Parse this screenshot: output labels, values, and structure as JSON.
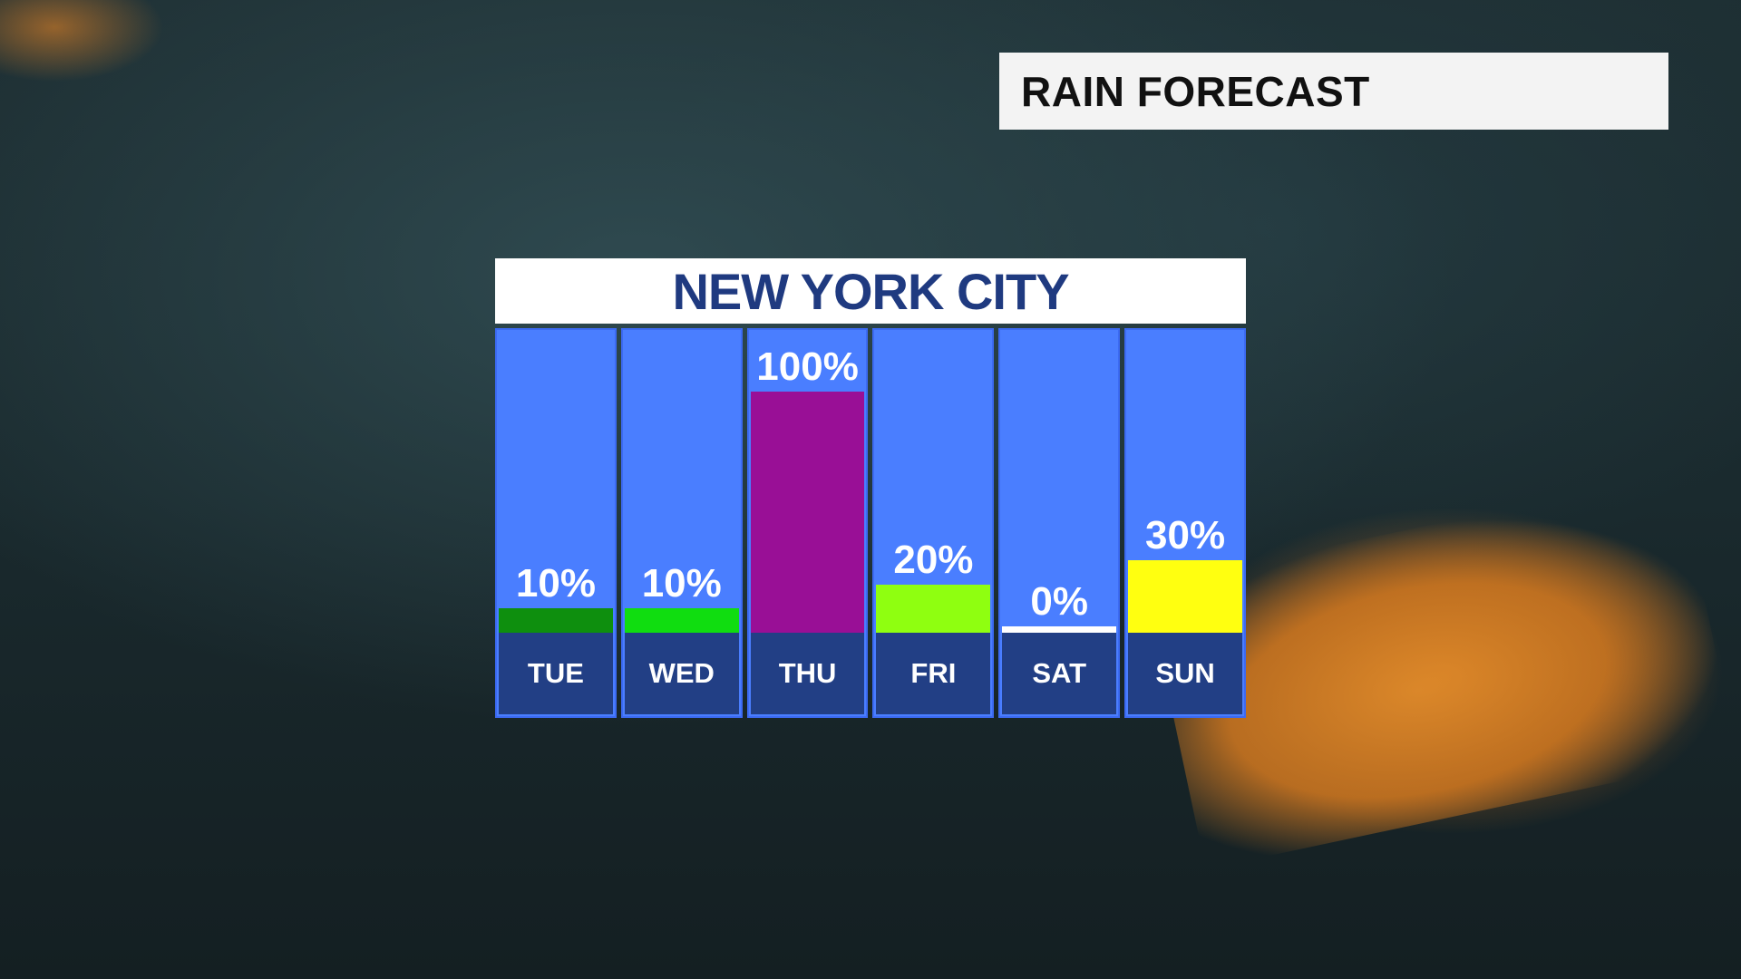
{
  "title": "RAIN FORECAST",
  "chart_data": {
    "type": "bar",
    "title": "NEW YORK CITY",
    "categories": [
      "TUE",
      "WED",
      "THU",
      "FRI",
      "SAT",
      "SUN"
    ],
    "values": [
      10,
      10,
      100,
      20,
      0,
      30
    ],
    "labels": [
      "10%",
      "10%",
      "100%",
      "20%",
      "0%",
      "30%"
    ],
    "bar_colors": [
      "#0e8f0e",
      "#10dd10",
      "#990f96",
      "#8fff10",
      "#ffffff",
      "#ffff10"
    ],
    "ylim": [
      0,
      100
    ],
    "unit": "%"
  },
  "colors": {
    "column_bg": "#4a7eff",
    "day_bg": "#223f85",
    "title_text": "#1f3a80"
  }
}
